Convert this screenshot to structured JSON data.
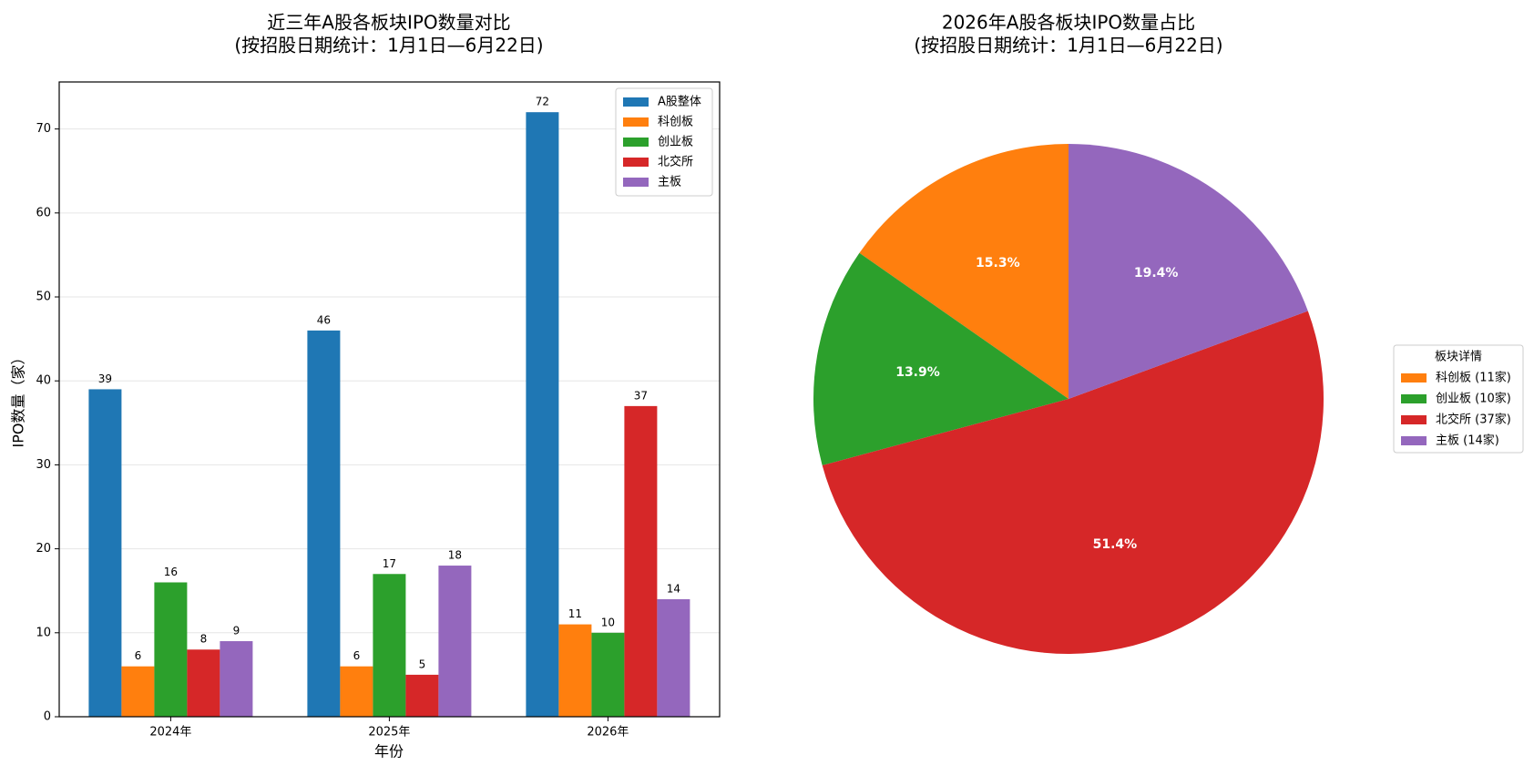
{
  "chart_data": [
    {
      "type": "bar",
      "title": "近三年A股各板块IPO数量对比",
      "subtitle": "(按招股日期统计：1月1日—6月22日)",
      "x_label": "年份",
      "y_label": "IPO数量（家）",
      "categories": [
        "2024年",
        "2025年",
        "2026年"
      ],
      "series": [
        {
          "name": "A股整体",
          "color": "#1f77b4",
          "values": [
            39,
            46,
            72
          ]
        },
        {
          "name": "科创板",
          "color": "#ff7f0e",
          "values": [
            6,
            6,
            11
          ]
        },
        {
          "name": "创业板",
          "color": "#2ca02c",
          "values": [
            16,
            17,
            10
          ]
        },
        {
          "name": "北交所",
          "color": "#d62728",
          "values": [
            8,
            5,
            37
          ]
        },
        {
          "name": "主板",
          "color": "#9467bd",
          "values": [
            9,
            18,
            14
          ]
        }
      ],
      "ylim": [
        0,
        75.6
      ],
      "yticks": [
        0,
        10,
        20,
        30,
        40,
        50,
        60,
        70
      ],
      "grid": true,
      "legend": "upper right"
    },
    {
      "type": "pie",
      "title": "2026年A股各板块IPO数量占比",
      "subtitle": "(按招股日期统计：1月1日—6月22日)",
      "legend_title": "板块详情",
      "labels": [
        "科创板 (11家)",
        "创业板 (10家)",
        "北交所 (37家)",
        "主板 (14家)"
      ],
      "values": [
        15.3,
        13.9,
        51.4,
        19.4
      ],
      "value_labels": [
        "15.3%",
        "13.9%",
        "51.4%",
        "19.4%"
      ],
      "colors": [
        "#ff7f0e",
        "#2ca02c",
        "#d62728",
        "#9467bd"
      ],
      "start_angle": 90,
      "legend": "center right"
    }
  ]
}
